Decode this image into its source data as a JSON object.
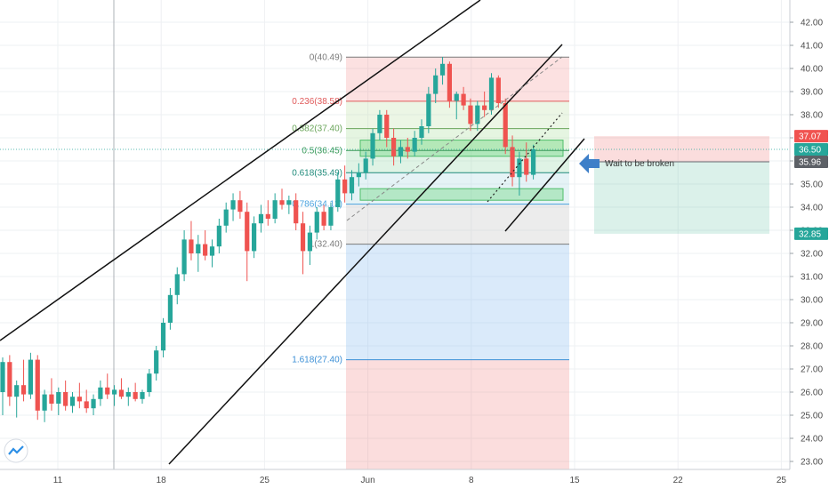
{
  "chart_data": {
    "type": "candlestick",
    "title": "",
    "xlabel": "",
    "ylabel": "",
    "ylim": [
      22.8,
      42.5
    ],
    "y_ticks": [
      "23.00",
      "24.00",
      "25.00",
      "26.00",
      "27.00",
      "28.00",
      "29.00",
      "30.00",
      "31.00",
      "32.00",
      "33.00",
      "34.00",
      "35.00",
      "36.00",
      "37.00",
      "38.00",
      "39.00",
      "40.00",
      "41.00",
      "42.00"
    ],
    "x_ticks": [
      {
        "label": "11",
        "day": 11
      },
      {
        "label": "18",
        "day": 18
      },
      {
        "label": "25",
        "day": 25
      },
      {
        "label": "Jun",
        "day": 32
      },
      {
        "label": "8",
        "day": 39
      },
      {
        "label": "15",
        "day": 46
      },
      {
        "label": "22",
        "day": 53
      },
      {
        "label": "25",
        "day": 60
      }
    ],
    "grid": true,
    "candles": [
      {
        "o": 26.0,
        "h": 27.5,
        "l": 25.0,
        "c": 27.3
      },
      {
        "o": 27.3,
        "h": 27.6,
        "l": 25.4,
        "c": 25.8
      },
      {
        "o": 25.8,
        "h": 26.5,
        "l": 24.9,
        "c": 26.3
      },
      {
        "o": 26.3,
        "h": 27.4,
        "l": 25.6,
        "c": 25.9
      },
      {
        "o": 25.9,
        "h": 27.7,
        "l": 25.7,
        "c": 27.4
      },
      {
        "o": 27.4,
        "h": 27.6,
        "l": 24.8,
        "c": 25.2
      },
      {
        "o": 25.2,
        "h": 26.1,
        "l": 24.7,
        "c": 25.9
      },
      {
        "o": 25.9,
        "h": 26.6,
        "l": 25.2,
        "c": 25.5
      },
      {
        "o": 25.5,
        "h": 26.2,
        "l": 25.0,
        "c": 26.0
      },
      {
        "o": 26.0,
        "h": 26.5,
        "l": 25.2,
        "c": 25.4
      },
      {
        "o": 25.4,
        "h": 26.0,
        "l": 25.1,
        "c": 25.8
      },
      {
        "o": 25.8,
        "h": 26.4,
        "l": 25.3,
        "c": 25.6
      },
      {
        "o": 25.6,
        "h": 26.1,
        "l": 25.1,
        "c": 25.3
      },
      {
        "o": 25.3,
        "h": 25.9,
        "l": 25.0,
        "c": 25.7
      },
      {
        "o": 25.7,
        "h": 26.5,
        "l": 25.4,
        "c": 26.2
      },
      {
        "o": 26.2,
        "h": 26.8,
        "l": 25.7,
        "c": 25.9
      },
      {
        "o": 25.9,
        "h": 26.3,
        "l": 25.4,
        "c": 26.1
      },
      {
        "o": 26.1,
        "h": 26.6,
        "l": 25.7,
        "c": 25.8
      },
      {
        "o": 25.8,
        "h": 26.2,
        "l": 25.4,
        "c": 26.0
      },
      {
        "o": 26.0,
        "h": 26.4,
        "l": 25.6,
        "c": 25.7
      },
      {
        "o": 25.7,
        "h": 26.1,
        "l": 25.5,
        "c": 26.0
      },
      {
        "o": 26.0,
        "h": 27.0,
        "l": 25.8,
        "c": 26.8
      },
      {
        "o": 26.8,
        "h": 28.0,
        "l": 26.5,
        "c": 27.8
      },
      {
        "o": 27.8,
        "h": 29.2,
        "l": 27.5,
        "c": 29.0
      },
      {
        "o": 29.0,
        "h": 30.5,
        "l": 28.7,
        "c": 30.2
      },
      {
        "o": 30.2,
        "h": 31.4,
        "l": 29.8,
        "c": 31.1
      },
      {
        "o": 31.1,
        "h": 33.0,
        "l": 30.8,
        "c": 32.6
      },
      {
        "o": 32.6,
        "h": 33.4,
        "l": 31.7,
        "c": 32.0
      },
      {
        "o": 32.0,
        "h": 32.8,
        "l": 31.2,
        "c": 32.4
      },
      {
        "o": 32.4,
        "h": 33.0,
        "l": 31.7,
        "c": 31.9
      },
      {
        "o": 31.9,
        "h": 32.6,
        "l": 31.4,
        "c": 32.3
      },
      {
        "o": 32.3,
        "h": 33.5,
        "l": 32.0,
        "c": 33.2
      },
      {
        "o": 33.2,
        "h": 34.2,
        "l": 32.9,
        "c": 33.9
      },
      {
        "o": 33.9,
        "h": 34.6,
        "l": 33.4,
        "c": 34.3
      },
      {
        "o": 34.3,
        "h": 34.7,
        "l": 33.5,
        "c": 33.8
      },
      {
        "o": 33.8,
        "h": 34.2,
        "l": 30.8,
        "c": 32.1
      },
      {
        "o": 32.1,
        "h": 33.6,
        "l": 31.8,
        "c": 33.3
      },
      {
        "o": 33.3,
        "h": 34.1,
        "l": 32.9,
        "c": 33.7
      },
      {
        "o": 33.7,
        "h": 34.3,
        "l": 33.2,
        "c": 33.5
      },
      {
        "o": 33.5,
        "h": 34.6,
        "l": 33.3,
        "c": 34.3
      },
      {
        "o": 34.3,
        "h": 34.8,
        "l": 33.9,
        "c": 34.1
      },
      {
        "o": 34.1,
        "h": 34.5,
        "l": 33.7,
        "c": 34.3
      },
      {
        "o": 34.3,
        "h": 34.6,
        "l": 33.0,
        "c": 33.3
      },
      {
        "o": 33.3,
        "h": 33.8,
        "l": 31.1,
        "c": 32.1
      },
      {
        "o": 32.1,
        "h": 33.2,
        "l": 31.5,
        "c": 32.9
      },
      {
        "o": 32.9,
        "h": 34.0,
        "l": 32.6,
        "c": 33.8
      },
      {
        "o": 33.8,
        "h": 34.1,
        "l": 33.0,
        "c": 33.2
      },
      {
        "o": 33.2,
        "h": 34.2,
        "l": 33.0,
        "c": 34.0
      },
      {
        "o": 34.0,
        "h": 35.5,
        "l": 33.8,
        "c": 35.2
      },
      {
        "o": 35.2,
        "h": 35.8,
        "l": 34.2,
        "c": 34.6
      },
      {
        "o": 34.6,
        "h": 35.6,
        "l": 34.3,
        "c": 35.3
      },
      {
        "o": 35.3,
        "h": 35.9,
        "l": 34.9,
        "c": 35.5
      },
      {
        "o": 35.5,
        "h": 36.4,
        "l": 35.2,
        "c": 36.1
      },
      {
        "o": 36.1,
        "h": 37.4,
        "l": 35.8,
        "c": 37.2
      },
      {
        "o": 37.2,
        "h": 38.2,
        "l": 36.9,
        "c": 38.0
      },
      {
        "o": 38.0,
        "h": 38.2,
        "l": 36.6,
        "c": 37.0
      },
      {
        "o": 37.0,
        "h": 37.4,
        "l": 35.8,
        "c": 36.2
      },
      {
        "o": 36.2,
        "h": 36.9,
        "l": 35.9,
        "c": 36.6
      },
      {
        "o": 36.6,
        "h": 37.0,
        "l": 36.1,
        "c": 36.4
      },
      {
        "o": 36.4,
        "h": 37.3,
        "l": 36.2,
        "c": 37.0
      },
      {
        "o": 37.0,
        "h": 37.8,
        "l": 36.7,
        "c": 37.5
      },
      {
        "o": 37.5,
        "h": 39.2,
        "l": 37.2,
        "c": 38.9
      },
      {
        "o": 38.9,
        "h": 40.0,
        "l": 38.5,
        "c": 39.7
      },
      {
        "o": 39.7,
        "h": 40.5,
        "l": 39.3,
        "c": 40.2
      },
      {
        "o": 40.2,
        "h": 40.3,
        "l": 38.3,
        "c": 38.6
      },
      {
        "o": 38.6,
        "h": 39.0,
        "l": 37.8,
        "c": 38.9
      },
      {
        "o": 38.9,
        "h": 39.2,
        "l": 38.2,
        "c": 38.4
      },
      {
        "o": 38.4,
        "h": 38.7,
        "l": 37.3,
        "c": 37.6
      },
      {
        "o": 37.6,
        "h": 38.6,
        "l": 37.3,
        "c": 38.4
      },
      {
        "o": 38.4,
        "h": 39.0,
        "l": 37.9,
        "c": 38.2
      },
      {
        "o": 38.2,
        "h": 39.8,
        "l": 38.0,
        "c": 39.6
      },
      {
        "o": 39.6,
        "h": 39.7,
        "l": 38.3,
        "c": 38.5
      },
      {
        "o": 38.5,
        "h": 38.7,
        "l": 36.3,
        "c": 36.6
      },
      {
        "o": 36.6,
        "h": 37.1,
        "l": 34.9,
        "c": 35.3
      },
      {
        "o": 35.3,
        "h": 36.4,
        "l": 34.5,
        "c": 36.1
      },
      {
        "o": 36.1,
        "h": 36.8,
        "l": 35.1,
        "c": 35.4
      },
      {
        "o": 35.4,
        "h": 36.7,
        "l": 35.2,
        "c": 36.5
      }
    ],
    "fibonacci": [
      {
        "label": "0(40.49)",
        "value": 40.49,
        "color": "#7a7a7a"
      },
      {
        "label": "0.236(38.58)",
        "value": 38.58,
        "color": "#e05a5a"
      },
      {
        "label": "0.382(37.40)",
        "value": 37.4,
        "color": "#6aa55a"
      },
      {
        "label": "0.5(36.45)",
        "value": 36.45,
        "color": "#3a9a5a"
      },
      {
        "label": "0.618(35.49)",
        "value": 35.49,
        "color": "#1e8a7a"
      },
      {
        "label": "0.786(34.13)",
        "value": 34.13,
        "color": "#4aa3df"
      },
      {
        "label": "1(32.40)",
        "value": 32.4,
        "color": "#7a7a7a"
      },
      {
        "label": "1.618(27.40)",
        "value": 27.4,
        "color": "#3b8fd6"
      }
    ],
    "price_tags": [
      {
        "label": "37.07",
        "value": 37.07,
        "color": "#f05350"
      },
      {
        "label": "36.50",
        "value": 36.5,
        "color": "#26a69a"
      },
      {
        "label": "35.96",
        "value": 35.96,
        "color": "#5d6167"
      },
      {
        "label": "32.85",
        "value": 32.85,
        "color": "#26a69a"
      }
    ],
    "annotation": "Wait to be broken",
    "colors": {
      "up": "#26a69a",
      "down": "#ef5350",
      "grid": "#eef0f3"
    }
  }
}
